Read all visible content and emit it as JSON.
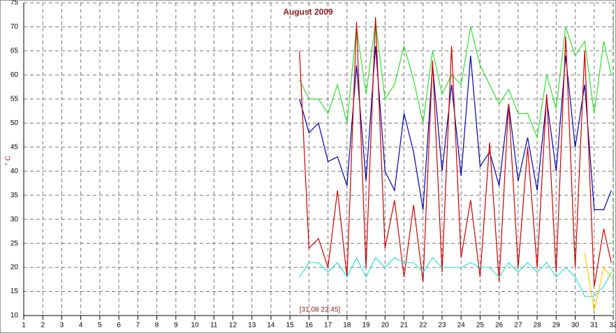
{
  "chart_data": {
    "type": "line",
    "title": "August 2009",
    "y_label": "° C",
    "annotation": "[31.08 23:45]",
    "x": [
      15.5,
      16,
      16.5,
      17,
      17.5,
      18,
      18.5,
      19,
      19.5,
      20,
      20.5,
      21,
      21.5,
      22,
      22.5,
      23,
      23.5,
      24,
      24.5,
      25,
      25.5,
      26,
      26.5,
      27,
      27.5,
      28,
      28.5,
      29,
      29.5,
      30,
      30.5,
      31,
      31.5,
      31.9
    ],
    "series": [
      {
        "color": "#33dd33",
        "values": [
          59,
          55,
          55,
          52,
          58,
          50,
          70,
          56,
          71,
          55,
          58,
          66,
          59,
          50,
          65,
          56,
          60,
          58,
          70,
          62,
          58,
          54,
          57,
          52,
          52,
          47,
          60,
          53,
          70,
          64,
          67,
          52,
          67,
          60
        ]
      },
      {
        "color": "#0000aa",
        "values": [
          55,
          48,
          50,
          42,
          43,
          37,
          62,
          38,
          66,
          40,
          36,
          52,
          44,
          32,
          62,
          40,
          58,
          39,
          64,
          41,
          44,
          37,
          54,
          38,
          47,
          36,
          55,
          40,
          64,
          45,
          58,
          32,
          32,
          36
        ]
      },
      {
        "color": "#cc0000",
        "values": [
          65,
          24,
          26,
          20,
          36,
          18,
          71,
          20,
          72,
          24,
          34,
          18,
          33,
          17,
          63,
          19,
          66,
          22,
          34,
          18,
          46,
          17,
          54,
          20,
          45,
          20,
          56,
          19,
          68,
          20,
          65,
          16,
          28,
          21
        ]
      },
      {
        "color": "#33dddd",
        "values": [
          18,
          21,
          21,
          19,
          21,
          18,
          22,
          18,
          22,
          20,
          22,
          21,
          21,
          19,
          22,
          20,
          20,
          20,
          21,
          20,
          20,
          18,
          21,
          19,
          21,
          19,
          21,
          18,
          20,
          18,
          14,
          14,
          16,
          19
        ]
      },
      {
        "color": "#ffcc00",
        "values": [
          null,
          null,
          null,
          null,
          null,
          null,
          null,
          null,
          null,
          null,
          null,
          null,
          null,
          null,
          null,
          null,
          null,
          null,
          null,
          null,
          null,
          null,
          null,
          null,
          null,
          null,
          null,
          null,
          null,
          null,
          23,
          11,
          20,
          18
        ]
      }
    ],
    "xlim": [
      1,
      32
    ],
    "xticks": [
      1,
      2,
      3,
      4,
      5,
      6,
      7,
      8,
      9,
      10,
      11,
      12,
      13,
      14,
      15,
      16,
      17,
      18,
      19,
      20,
      21,
      22,
      23,
      24,
      25,
      26,
      27,
      28,
      29,
      30,
      31,
      32
    ],
    "ylim": [
      10,
      75
    ],
    "yticks": [
      10,
      15,
      20,
      25,
      30,
      35,
      40,
      45,
      50,
      55,
      60,
      65,
      70,
      75
    ],
    "grid": true
  }
}
